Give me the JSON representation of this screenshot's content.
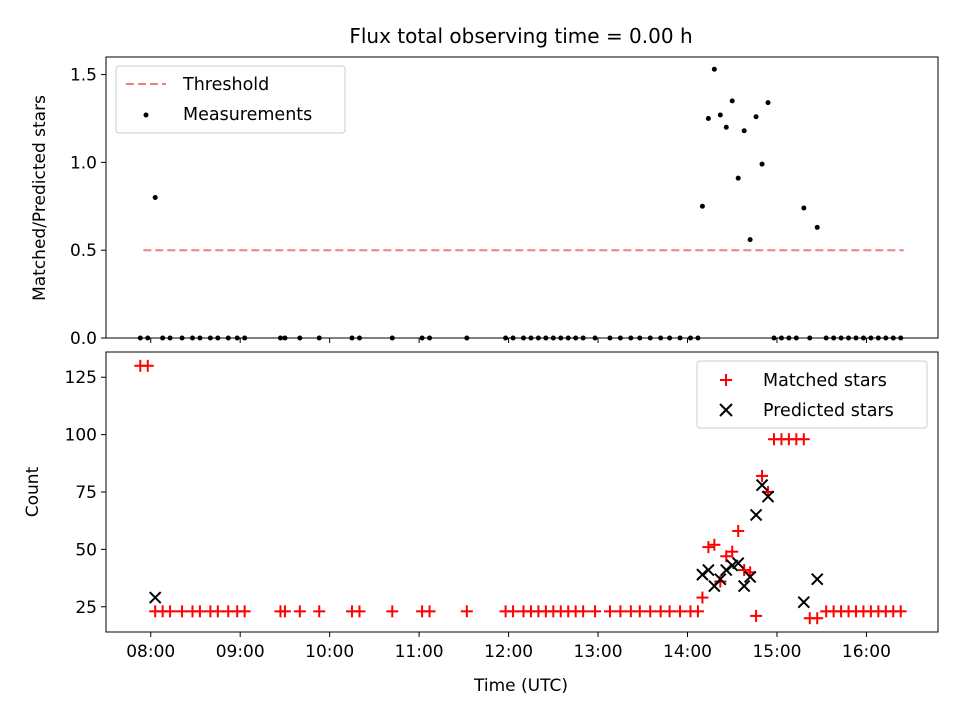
{
  "chart_data": [
    {
      "type": "scatter",
      "title": "Flux total observing time = 0.00 h",
      "xlabel": "",
      "ylabel": "Matched/Predicted stars",
      "xlim_hours": [
        7.5,
        16.8
      ],
      "ylim": [
        0,
        1.6
      ],
      "yticks": [
        0.0,
        0.5,
        1.0,
        1.5
      ],
      "ytick_labels": [
        "0.0",
        "0.5",
        "1.0",
        "1.5"
      ],
      "legend_position": "top-left",
      "threshold": {
        "name": "Threshold",
        "value": 0.5,
        "x_range": [
          "07:55",
          "16:25"
        ],
        "color": "#f08080",
        "style": "dashed"
      },
      "series": [
        {
          "name": "Measurements",
          "color": "#000000",
          "marker": "dot",
          "points": [
            [
              "07:53",
              0
            ],
            [
              "07:58",
              0
            ],
            [
              "08:03",
              0.8
            ],
            [
              "08:08",
              0
            ],
            [
              "08:13",
              0
            ],
            [
              "08:21",
              0
            ],
            [
              "08:28",
              0
            ],
            [
              "08:33",
              0
            ],
            [
              "08:40",
              0
            ],
            [
              "08:45",
              0
            ],
            [
              "08:52",
              0
            ],
            [
              "08:58",
              0
            ],
            [
              "09:03",
              0
            ],
            [
              "09:27",
              0
            ],
            [
              "09:30",
              0
            ],
            [
              "09:40",
              0
            ],
            [
              "09:53",
              0
            ],
            [
              "10:15",
              0
            ],
            [
              "10:20",
              0
            ],
            [
              "10:42",
              0
            ],
            [
              "11:02",
              0
            ],
            [
              "11:07",
              0
            ],
            [
              "11:32",
              0
            ],
            [
              "11:58",
              0
            ],
            [
              "12:03",
              0
            ],
            [
              "12:10",
              0
            ],
            [
              "12:15",
              0
            ],
            [
              "12:20",
              0
            ],
            [
              "12:25",
              0
            ],
            [
              "12:30",
              0
            ],
            [
              "12:35",
              0
            ],
            [
              "12:40",
              0
            ],
            [
              "12:45",
              0
            ],
            [
              "12:50",
              0
            ],
            [
              "12:58",
              0
            ],
            [
              "13:08",
              0
            ],
            [
              "13:15",
              0
            ],
            [
              "13:22",
              0
            ],
            [
              "13:28",
              0
            ],
            [
              "13:35",
              0
            ],
            [
              "13:42",
              0
            ],
            [
              "13:48",
              0
            ],
            [
              "13:55",
              0
            ],
            [
              "14:02",
              0
            ],
            [
              "14:07",
              0
            ],
            [
              "14:10",
              0.75
            ],
            [
              "14:14",
              1.25
            ],
            [
              "14:18",
              1.53
            ],
            [
              "14:22",
              1.27
            ],
            [
              "14:26",
              1.2
            ],
            [
              "14:30",
              1.35
            ],
            [
              "14:34",
              0.91
            ],
            [
              "14:38",
              1.18
            ],
            [
              "14:42",
              0.56
            ],
            [
              "14:46",
              1.26
            ],
            [
              "14:50",
              0.99
            ],
            [
              "14:54",
              1.34
            ],
            [
              "14:58",
              0
            ],
            [
              "15:03",
              0
            ],
            [
              "15:08",
              0
            ],
            [
              "15:13",
              0
            ],
            [
              "15:18",
              0.74
            ],
            [
              "15:22",
              0
            ],
            [
              "15:27",
              0.63
            ],
            [
              "15:33",
              0
            ],
            [
              "15:38",
              0
            ],
            [
              "15:43",
              0
            ],
            [
              "15:48",
              0
            ],
            [
              "15:53",
              0
            ],
            [
              "15:58",
              0
            ],
            [
              "16:03",
              0
            ],
            [
              "16:08",
              0
            ],
            [
              "16:13",
              0
            ],
            [
              "16:18",
              0
            ],
            [
              "16:23",
              0
            ]
          ]
        }
      ]
    },
    {
      "type": "scatter",
      "title": "",
      "xlabel": "Time (UTC)",
      "ylabel": "Count",
      "xlim_hours": [
        7.5,
        16.8
      ],
      "ylim": [
        14,
        136
      ],
      "yticks": [
        25,
        50,
        75,
        100,
        125
      ],
      "ytick_labels": [
        "25",
        "50",
        "75",
        "100",
        "125"
      ],
      "xticks": [
        "08:00",
        "09:00",
        "10:00",
        "11:00",
        "12:00",
        "13:00",
        "14:00",
        "15:00",
        "16:00"
      ],
      "legend_position": "top-right",
      "series": [
        {
          "name": "Matched stars",
          "color": "#ff0000",
          "marker": "plus",
          "points": [
            [
              "07:53",
              130
            ],
            [
              "07:58",
              130
            ],
            [
              "08:03",
              23
            ],
            [
              "08:08",
              23
            ],
            [
              "08:13",
              23
            ],
            [
              "08:21",
              23
            ],
            [
              "08:28",
              23
            ],
            [
              "08:33",
              23
            ],
            [
              "08:40",
              23
            ],
            [
              "08:45",
              23
            ],
            [
              "08:52",
              23
            ],
            [
              "08:58",
              23
            ],
            [
              "09:03",
              23
            ],
            [
              "09:27",
              23
            ],
            [
              "09:30",
              23
            ],
            [
              "09:40",
              23
            ],
            [
              "09:53",
              23
            ],
            [
              "10:15",
              23
            ],
            [
              "10:20",
              23
            ],
            [
              "10:42",
              23
            ],
            [
              "11:02",
              23
            ],
            [
              "11:07",
              23
            ],
            [
              "11:32",
              23
            ],
            [
              "11:58",
              23
            ],
            [
              "12:03",
              23
            ],
            [
              "12:10",
              23
            ],
            [
              "12:15",
              23
            ],
            [
              "12:20",
              23
            ],
            [
              "12:25",
              23
            ],
            [
              "12:30",
              23
            ],
            [
              "12:35",
              23
            ],
            [
              "12:40",
              23
            ],
            [
              "12:45",
              23
            ],
            [
              "12:50",
              23
            ],
            [
              "12:58",
              23
            ],
            [
              "13:08",
              23
            ],
            [
              "13:15",
              23
            ],
            [
              "13:22",
              23
            ],
            [
              "13:28",
              23
            ],
            [
              "13:35",
              23
            ],
            [
              "13:42",
              23
            ],
            [
              "13:48",
              23
            ],
            [
              "13:55",
              23
            ],
            [
              "14:02",
              23
            ],
            [
              "14:07",
              23
            ],
            [
              "14:10",
              29
            ],
            [
              "14:14",
              51
            ],
            [
              "14:18",
              52
            ],
            [
              "14:22",
              36
            ],
            [
              "14:26",
              47
            ],
            [
              "14:30",
              49
            ],
            [
              "14:34",
              58
            ],
            [
              "14:38",
              41
            ],
            [
              "14:42",
              40
            ],
            [
              "14:46",
              21
            ],
            [
              "14:50",
              82
            ],
            [
              "14:54",
              75
            ],
            [
              "14:58",
              98
            ],
            [
              "15:03",
              98
            ],
            [
              "15:08",
              98
            ],
            [
              "15:13",
              98
            ],
            [
              "15:18",
              98
            ],
            [
              "15:22",
              20
            ],
            [
              "15:27",
              20
            ],
            [
              "15:33",
              23
            ],
            [
              "15:38",
              23
            ],
            [
              "15:43",
              23
            ],
            [
              "15:48",
              23
            ],
            [
              "15:53",
              23
            ],
            [
              "15:58",
              23
            ],
            [
              "16:03",
              23
            ],
            [
              "16:08",
              23
            ],
            [
              "16:13",
              23
            ],
            [
              "16:18",
              23
            ],
            [
              "16:23",
              23
            ]
          ]
        },
        {
          "name": "Predicted stars",
          "color": "#000000",
          "marker": "x",
          "points": [
            [
              "08:03",
              29
            ],
            [
              "14:10",
              39
            ],
            [
              "14:14",
              41
            ],
            [
              "14:18",
              34
            ],
            [
              "14:22",
              37
            ],
            [
              "14:26",
              41
            ],
            [
              "14:30",
              43
            ],
            [
              "14:34",
              44
            ],
            [
              "14:38",
              34
            ],
            [
              "14:42",
              38
            ],
            [
              "14:46",
              65
            ],
            [
              "14:50",
              78
            ],
            [
              "14:54",
              73
            ],
            [
              "15:18",
              27
            ],
            [
              "15:27",
              37
            ]
          ]
        }
      ]
    }
  ]
}
